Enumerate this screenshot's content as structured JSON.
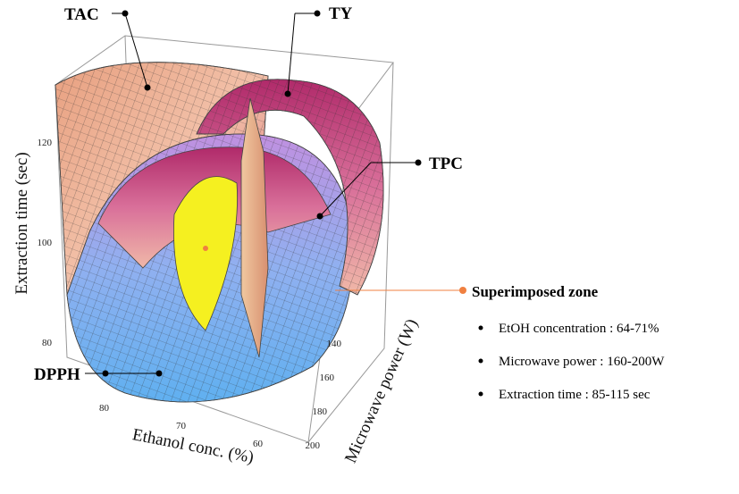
{
  "labels": {
    "tac": "TAC",
    "ty": "TY",
    "tpc": "TPC",
    "dpph": "DPPH"
  },
  "axes": {
    "z": {
      "label": "Extraction time (sec)",
      "ticks": [
        120,
        100,
        80
      ]
    },
    "x": {
      "label": "Ethanol conc. (%)",
      "ticks": [
        80,
        70,
        60
      ]
    },
    "y": {
      "label": "Microwave power (W)",
      "ticks": [
        140,
        160,
        180,
        200
      ]
    }
  },
  "zone": {
    "title": "Superimposed zone",
    "items": [
      "EtOH concentration : 64-71%",
      "Microwave power : 160-200W",
      "Extraction time : 85-115 sec"
    ]
  }
}
